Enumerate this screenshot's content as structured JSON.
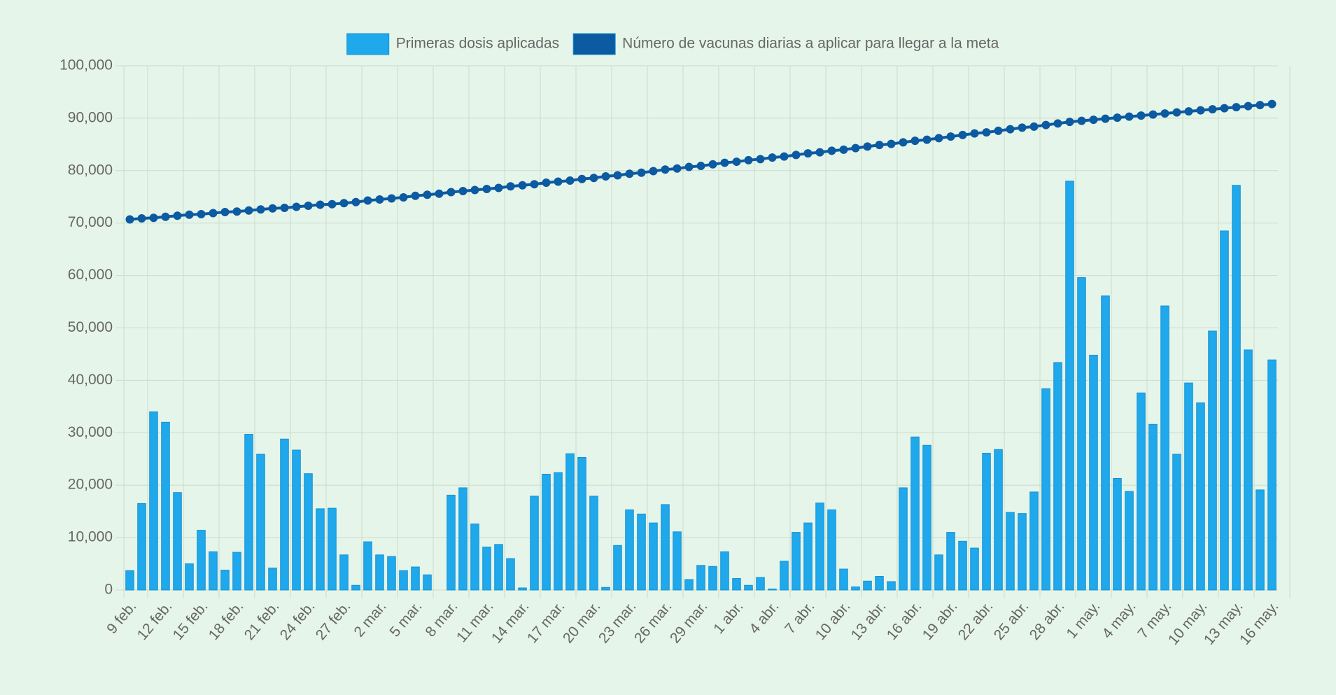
{
  "chart_data": {
    "type": "bar",
    "categories": [
      "9 feb.",
      null,
      null,
      "12 feb.",
      null,
      null,
      "15 feb.",
      null,
      null,
      "18 feb.",
      null,
      null,
      "21 feb.",
      null,
      null,
      "24 feb.",
      null,
      null,
      "27 feb.",
      null,
      null,
      "2 mar.",
      null,
      null,
      "5 mar.",
      null,
      null,
      "8 mar.",
      null,
      null,
      "11 mar.",
      null,
      null,
      "14 mar.",
      null,
      null,
      "17 mar.",
      null,
      null,
      "20 mar.",
      null,
      null,
      "23 mar.",
      null,
      null,
      "26 mar.",
      null,
      null,
      "29 mar.",
      null,
      null,
      "1 abr.",
      null,
      null,
      "4 abr.",
      null,
      null,
      "7 abr.",
      null,
      null,
      "10 abr.",
      null,
      null,
      "13 abr.",
      null,
      null,
      "16 abr.",
      null,
      null,
      "19 abr.",
      null,
      null,
      "22 abr.",
      null,
      null,
      "25 abr.",
      null,
      null,
      "28 abr.",
      null,
      null,
      "1 may.",
      null,
      null,
      "4 may.",
      null,
      null,
      "7 may.",
      null,
      null,
      "10 may.",
      null,
      null,
      "13 may.",
      null,
      null,
      "16 may."
    ],
    "series": [
      {
        "name": "Primeras dosis aplicadas",
        "type": "bar",
        "color": "#1fa9ec",
        "values": [
          3700,
          16500,
          34000,
          32000,
          18600,
          5000,
          11400,
          7300,
          3800,
          7200,
          29700,
          25900,
          4200,
          28800,
          26700,
          22200,
          15500,
          15600,
          6700,
          900,
          9200,
          6700,
          6400,
          3700,
          4400,
          2900,
          0,
          18100,
          19500,
          12600,
          8200,
          8700,
          6000,
          400,
          17900,
          22100,
          22400,
          26000,
          25300,
          17900,
          500,
          8500,
          15300,
          14500,
          12800,
          16300,
          11100,
          2000,
          4700,
          4500,
          7300,
          2200,
          900,
          2400,
          200,
          5500,
          11000,
          12800,
          16600,
          15300,
          4000,
          600,
          1700,
          2600,
          1600,
          19500,
          29200,
          27600,
          6700,
          11000,
          9300,
          8000,
          26100,
          26800,
          14800,
          14600,
          18700,
          38400,
          43400,
          78000,
          59600,
          44800,
          56100,
          21300,
          18800,
          37600,
          31600,
          54200,
          25900,
          39500,
          35700,
          49400,
          68500,
          77200,
          45800,
          19100,
          43900
        ]
      },
      {
        "name": "Número de vacunas diarias a aplicar para llegar a la meta",
        "type": "line",
        "color": "#0b5aa2",
        "values": [
          70700,
          70900,
          71000,
          71200,
          71400,
          71600,
          71700,
          71900,
          72100,
          72200,
          72400,
          72600,
          72800,
          72900,
          73100,
          73300,
          73500,
          73600,
          73800,
          74000,
          74300,
          74500,
          74700,
          74900,
          75200,
          75400,
          75600,
          75900,
          76100,
          76300,
          76500,
          76700,
          77000,
          77200,
          77400,
          77700,
          77900,
          78100,
          78400,
          78600,
          78900,
          79100,
          79400,
          79600,
          79900,
          80200,
          80400,
          80700,
          80900,
          81200,
          81500,
          81700,
          82000,
          82200,
          82500,
          82700,
          83000,
          83300,
          83500,
          83800,
          84000,
          84300,
          84600,
          84900,
          85100,
          85400,
          85700,
          85900,
          86200,
          86500,
          86800,
          87100,
          87300,
          87600,
          87900,
          88200,
          88400,
          88700,
          89000,
          89300,
          89500,
          89700,
          89900,
          90100,
          90300,
          90500,
          90700,
          90900,
          91100,
          91300,
          91500,
          91700,
          91900,
          92100,
          92300,
          92500,
          92700
        ]
      }
    ],
    "ylim": [
      0,
      100000
    ],
    "yticks": [
      0,
      {
        "value": 10000,
        "label": "10,000"
      },
      {
        "value": 20000,
        "label": "20,000"
      },
      {
        "value": 30000,
        "label": "30,000"
      },
      {
        "value": 40000,
        "label": "40,000"
      },
      {
        "value": 50000,
        "label": "50,000"
      },
      {
        "value": 60000,
        "label": "60,000"
      },
      {
        "value": 70000,
        "label": "70,000"
      },
      {
        "value": 80000,
        "label": "80,000"
      },
      {
        "value": 90000,
        "label": "90,000"
      },
      {
        "value": 100000,
        "label": "100,000"
      }
    ],
    "grid": true,
    "legend": "top"
  }
}
